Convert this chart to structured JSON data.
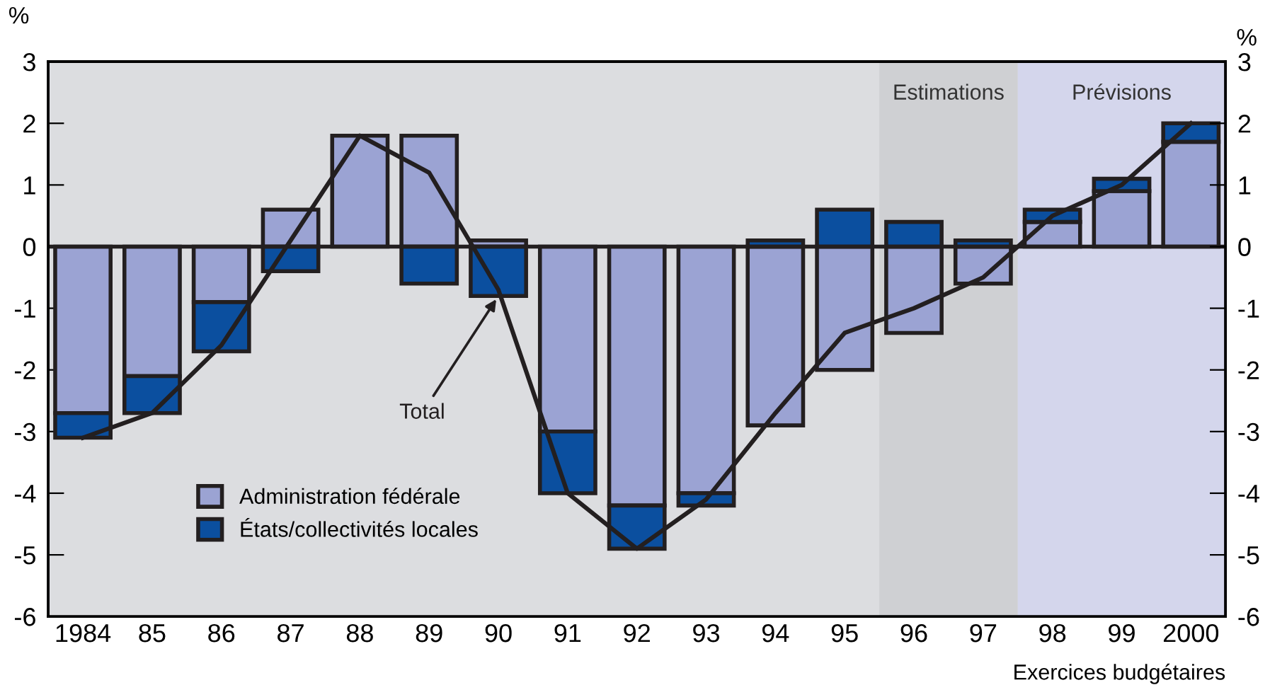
{
  "chart_data": {
    "type": "bar",
    "stacked": true,
    "xlabel": "Exercices budgétaires",
    "ylabel": "%",
    "y2label": "%",
    "categories": [
      "1984",
      "85",
      "86",
      "87",
      "88",
      "89",
      "90",
      "91",
      "92",
      "93",
      "94",
      "95",
      "96",
      "97",
      "98",
      "99",
      "2000"
    ],
    "series": [
      {
        "name": "Administration fédérale",
        "color": "#9ba3d3",
        "values": [
          -2.7,
          -2.1,
          -0.9,
          0.6,
          1.8,
          1.8,
          0.1,
          -3.0,
          -4.2,
          -4.0,
          -2.9,
          -2.0,
          -1.4,
          -0.6,
          0.4,
          0.9,
          1.7
        ]
      },
      {
        "name": "États/collectivités locales",
        "color": "#0b4f9f",
        "values": [
          -0.4,
          -0.6,
          -0.8,
          -0.4,
          0,
          -0.6,
          -0.8,
          -1.0,
          -0.7,
          -0.2,
          0.1,
          0.6,
          0.4,
          0.1,
          0.2,
          0.2,
          0.3
        ]
      },
      {
        "type": "line",
        "color": "#231f20",
        "values": [
          -3.1,
          -2.7,
          -1.6,
          0.1,
          1.8,
          1.2,
          -0.7,
          -4.0,
          -4.9,
          -4.1,
          -2.7,
          -1.4,
          -1.0,
          -0.5,
          0.5,
          1.0,
          2.0
        ]
      }
    ],
    "ylim": [
      -6,
      3
    ],
    "yticks": [
      -6,
      -5,
      -4,
      -3,
      -2,
      -1,
      0,
      1,
      2,
      3
    ],
    "y2lim": [
      -6,
      3
    ],
    "y2ticks": [
      -6,
      -5,
      -4,
      -3,
      -2,
      -1,
      0,
      1,
      2,
      3
    ],
    "ref_lines": [
      {
        "axis": "y",
        "value": 0,
        "color": "#231f20"
      }
    ],
    "bands": [
      {
        "axis": "x",
        "from": "96",
        "to": "97",
        "label": "Estimations",
        "color": "#cfd0d3"
      },
      {
        "axis": "x",
        "from": "98",
        "to": "2000",
        "label": "Prévisions",
        "color": "#d4d6ec"
      }
    ],
    "annotations": [
      {
        "text": "Total",
        "x": "90",
        "y": -0.8
      }
    ],
    "legend": "bottom left",
    "grid": false
  }
}
